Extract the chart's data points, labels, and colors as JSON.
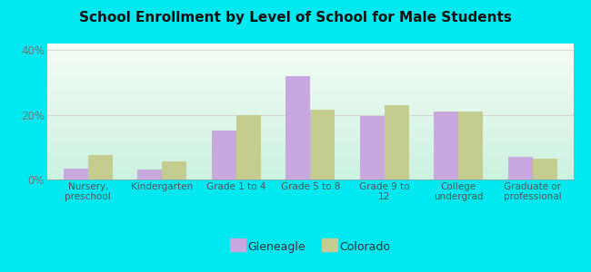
{
  "title": "School Enrollment by Level of School for Male Students",
  "categories": [
    "Nursery,\npreschool",
    "Kindergarten",
    "Grade 1 to 4",
    "Grade 5 to 8",
    "Grade 9 to\n12",
    "College\nundergrad",
    "Graduate or\nprofessional"
  ],
  "gleneagle": [
    3.5,
    3.0,
    15.0,
    32.0,
    19.5,
    21.0,
    7.0
  ],
  "colorado": [
    7.5,
    5.5,
    20.0,
    21.5,
    23.0,
    21.0,
    6.5
  ],
  "gleneagle_color": "#c9a8df",
  "colorado_color": "#c5cc90",
  "outer_bg": "#00e8f0",
  "ylim": [
    0,
    42
  ],
  "yticks": [
    0,
    20,
    40
  ],
  "ytick_labels": [
    "0%",
    "20%",
    "40%"
  ],
  "title_fontsize": 11,
  "legend_labels": [
    "Gleneagle",
    "Colorado"
  ],
  "bar_width": 0.33
}
